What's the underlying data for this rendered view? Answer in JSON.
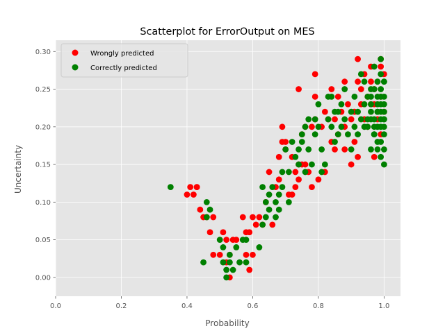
{
  "chart_data": {
    "type": "scatter",
    "title": "Scatterplot for ErrorOutput on MES",
    "xlabel": "Probability",
    "ylabel": "Uncertainty",
    "xlim": [
      0,
      1.05
    ],
    "ylim": [
      -0.025,
      0.315
    ],
    "xticks": [
      "0.0",
      "0.2",
      "0.4",
      "0.6",
      "0.8",
      "1.0"
    ],
    "xtick_values": [
      0,
      0.2,
      0.4,
      0.6,
      0.8,
      1.0
    ],
    "yticks": [
      "0.00",
      "0.05",
      "0.10",
      "0.15",
      "0.20",
      "0.25",
      "0.30"
    ],
    "ytick_values": [
      0,
      0.05,
      0.1,
      0.15,
      0.2,
      0.25,
      0.3
    ],
    "grid": true,
    "legend_position": "top-left",
    "series": [
      {
        "name": "Wrongly predicted",
        "color": "#ff0000",
        "x": [
          0.4,
          0.41,
          0.43,
          0.43,
          0.42,
          0.44,
          0.45,
          0.46,
          0.47,
          0.48,
          0.48,
          0.5,
          0.51,
          0.52,
          0.52,
          0.53,
          0.53,
          0.54,
          0.55,
          0.57,
          0.58,
          0.58,
          0.59,
          0.59,
          0.6,
          0.6,
          0.61,
          0.62,
          0.63,
          0.64,
          0.65,
          0.66,
          0.67,
          0.68,
          0.68,
          0.69,
          0.69,
          0.7,
          0.71,
          0.72,
          0.72,
          0.73,
          0.73,
          0.74,
          0.74,
          0.75,
          0.75,
          0.76,
          0.76,
          0.77,
          0.78,
          0.78,
          0.79,
          0.79,
          0.8,
          0.81,
          0.82,
          0.82,
          0.83,
          0.84,
          0.84,
          0.85,
          0.85,
          0.86,
          0.86,
          0.87,
          0.88,
          0.88,
          0.89,
          0.9,
          0.9,
          0.91,
          0.91,
          0.92,
          0.92,
          0.93,
          0.93,
          0.94,
          0.94,
          0.95,
          0.95,
          0.96,
          0.96,
          0.97,
          0.97,
          0.98,
          0.98,
          0.99,
          0.99,
          0.99,
          1.0,
          1.0,
          0.74,
          0.79,
          0.7,
          0.88,
          0.92,
          0.99,
          0.97,
          0.96
        ],
        "y": [
          0.11,
          0.12,
          0.12,
          0.12,
          0.11,
          0.09,
          0.08,
          0.08,
          0.06,
          0.03,
          0.08,
          0.03,
          0.06,
          0.02,
          0.05,
          0.03,
          0.0,
          0.05,
          0.05,
          0.08,
          0.03,
          0.06,
          0.01,
          0.06,
          0.03,
          0.08,
          0.07,
          0.08,
          0.07,
          0.1,
          0.14,
          0.07,
          0.12,
          0.13,
          0.16,
          0.18,
          0.2,
          0.18,
          0.11,
          0.11,
          0.16,
          0.12,
          0.14,
          0.13,
          0.15,
          0.15,
          0.19,
          0.15,
          0.2,
          0.14,
          0.12,
          0.2,
          0.24,
          0.27,
          0.13,
          0.2,
          0.14,
          0.22,
          0.21,
          0.18,
          0.25,
          0.21,
          0.17,
          0.19,
          0.24,
          0.22,
          0.26,
          0.2,
          0.23,
          0.15,
          0.21,
          0.22,
          0.18,
          0.26,
          0.29,
          0.23,
          0.25,
          0.21,
          0.27,
          0.2,
          0.24,
          0.26,
          0.28,
          0.23,
          0.25,
          0.21,
          0.26,
          0.29,
          0.28,
          0.24,
          0.22,
          0.27,
          0.25,
          0.21,
          0.17,
          0.17,
          0.16,
          0.19,
          0.16,
          0.23
        ]
      },
      {
        "name": "Correctly predicted",
        "color": "#008000",
        "x": [
          0.35,
          0.45,
          0.46,
          0.46,
          0.47,
          0.5,
          0.51,
          0.51,
          0.52,
          0.52,
          0.53,
          0.53,
          0.54,
          0.55,
          0.56,
          0.57,
          0.58,
          0.58,
          0.62,
          0.63,
          0.63,
          0.64,
          0.64,
          0.65,
          0.65,
          0.66,
          0.67,
          0.67,
          0.68,
          0.68,
          0.69,
          0.69,
          0.7,
          0.71,
          0.71,
          0.72,
          0.73,
          0.74,
          0.74,
          0.75,
          0.75,
          0.76,
          0.76,
          0.77,
          0.77,
          0.78,
          0.79,
          0.79,
          0.8,
          0.8,
          0.81,
          0.81,
          0.82,
          0.83,
          0.83,
          0.84,
          0.84,
          0.85,
          0.85,
          0.86,
          0.86,
          0.87,
          0.87,
          0.88,
          0.88,
          0.89,
          0.9,
          0.9,
          0.91,
          0.91,
          0.92,
          0.92,
          0.93,
          0.93,
          0.94,
          0.94,
          0.95,
          0.95,
          0.96,
          0.96,
          0.96,
          0.97,
          0.97,
          0.97,
          0.98,
          0.98,
          0.98,
          0.98,
          0.99,
          0.99,
          0.99,
          0.99,
          0.99,
          1.0,
          1.0,
          1.0,
          1.0,
          1.0,
          1.0,
          1.0,
          0.99,
          0.98,
          0.97,
          0.96,
          0.95,
          0.98,
          0.99,
          1.0,
          0.97,
          0.99,
          0.99,
          1.0,
          0.98,
          0.96,
          0.94,
          0.99,
          1.0,
          1.0,
          0.98,
          0.97,
          0.96,
          0.99
        ],
        "y": [
          0.12,
          0.02,
          0.1,
          0.08,
          0.09,
          0.05,
          0.02,
          0.04,
          0.0,
          0.01,
          0.02,
          0.03,
          0.01,
          0.04,
          0.02,
          0.05,
          0.02,
          0.05,
          0.04,
          0.07,
          0.12,
          0.08,
          0.1,
          0.11,
          0.09,
          0.12,
          0.1,
          0.08,
          0.09,
          0.11,
          0.14,
          0.12,
          0.17,
          0.14,
          0.1,
          0.18,
          0.16,
          0.17,
          0.15,
          0.18,
          0.19,
          0.2,
          0.14,
          0.17,
          0.21,
          0.15,
          0.19,
          0.21,
          0.23,
          0.2,
          0.14,
          0.17,
          0.15,
          0.21,
          0.24,
          0.2,
          0.24,
          0.22,
          0.18,
          0.19,
          0.22,
          0.2,
          0.23,
          0.25,
          0.21,
          0.19,
          0.17,
          0.22,
          0.24,
          0.2,
          0.22,
          0.19,
          0.27,
          0.21,
          0.23,
          0.26,
          0.24,
          0.2,
          0.17,
          0.22,
          0.25,
          0.19,
          0.21,
          0.28,
          0.23,
          0.2,
          0.26,
          0.17,
          0.25,
          0.22,
          0.29,
          0.2,
          0.18,
          0.24,
          0.21,
          0.19,
          0.23,
          0.26,
          0.17,
          0.15,
          0.24,
          0.22,
          0.2,
          0.23,
          0.21,
          0.18,
          0.27,
          0.21,
          0.25,
          0.2,
          0.16,
          0.22,
          0.24,
          0.21,
          0.2,
          0.23,
          0.26,
          0.2,
          0.22,
          0.19,
          0.24,
          0.21
        ]
      }
    ]
  }
}
